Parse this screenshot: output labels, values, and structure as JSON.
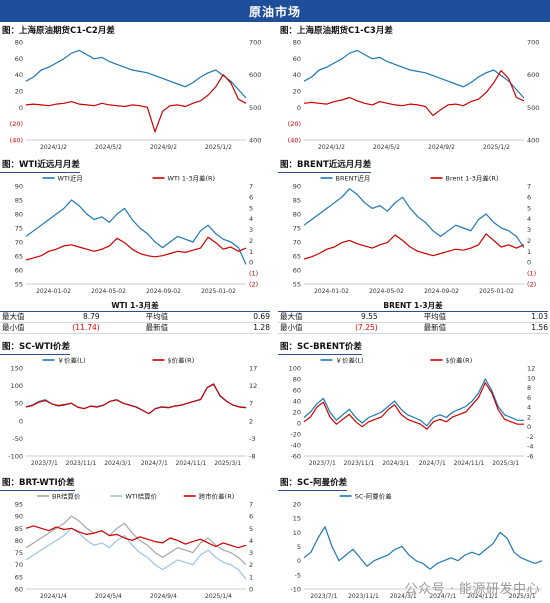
{
  "header": {
    "title": "原油市场"
  },
  "stats_wti": {
    "title": "WTI 1-3月差",
    "max_label": "最大值",
    "max_value": "8.79",
    "avg_label": "平均值",
    "avg_value": "0.69",
    "min_label": "最小值",
    "min_value": "(11.74)",
    "latest_label": "最新值",
    "latest_value": "1.28"
  },
  "stats_brent": {
    "title": "BRENT 1-3月差",
    "max_label": "最大值",
    "max_value": "9.55",
    "avg_label": "平均值",
    "avg_value": "1.03",
    "min_label": "最小值",
    "min_value": "(7.25)",
    "latest_label": "最新值",
    "latest_value": "1.56"
  },
  "watermark": "公众号 · 能源研发中心",
  "chart_data": [
    {
      "id": "c1",
      "type": "line",
      "title": "图：上海原油期货C1-C2月差",
      "x_ticks": [
        "2024/1/2",
        "2024/5/2",
        "2024/9/2",
        "2025/1/2"
      ],
      "left_ticks": [
        "80",
        "60",
        "40",
        "20",
        "0",
        "(20)",
        "(40)"
      ],
      "ylim": [
        -40,
        80
      ],
      "right_ticks": [
        "700",
        "600",
        "500",
        "400"
      ],
      "y2lim": [
        350,
        700
      ],
      "series": [
        {
          "axis": "right",
          "color": "#1f77b4",
          "values": [
            560,
            575,
            600,
            610,
            625,
            640,
            660,
            670,
            655,
            640,
            645,
            630,
            620,
            610,
            600,
            595,
            590,
            580,
            570,
            560,
            550,
            540,
            555,
            575,
            590,
            600,
            580,
            560,
            530,
            500
          ]
        },
        {
          "axis": "left",
          "color": "#cc0000",
          "values": [
            3,
            4,
            3,
            2,
            4,
            5,
            7,
            4,
            3,
            2,
            5,
            3,
            2,
            1,
            3,
            2,
            0,
            -30,
            -5,
            2,
            3,
            1,
            5,
            8,
            15,
            25,
            40,
            30,
            10,
            5
          ]
        }
      ]
    },
    {
      "id": "c2",
      "type": "line",
      "title": "图：上海原油期货C1-C3月差",
      "x_ticks": [
        "2024/1/2",
        "2024/5/2",
        "2024/9/2",
        "2025/1/2"
      ],
      "left_ticks": [
        "80",
        "60",
        "40",
        "20",
        "0",
        "(20)",
        "(40)"
      ],
      "ylim": [
        -40,
        80
      ],
      "right_ticks": [
        "700",
        "600",
        "500",
        "400"
      ],
      "y2lim": [
        350,
        700
      ],
      "series": [
        {
          "axis": "right",
          "color": "#1f77b4",
          "values": [
            560,
            575,
            600,
            610,
            625,
            640,
            660,
            670,
            655,
            640,
            645,
            630,
            620,
            610,
            600,
            595,
            590,
            580,
            570,
            560,
            550,
            540,
            555,
            575,
            590,
            600,
            580,
            560,
            530,
            500
          ]
        },
        {
          "axis": "left",
          "color": "#cc0000",
          "values": [
            5,
            6,
            5,
            4,
            7,
            9,
            12,
            8,
            5,
            3,
            7,
            5,
            3,
            2,
            4,
            3,
            1,
            -10,
            -3,
            3,
            4,
            2,
            7,
            10,
            18,
            30,
            45,
            35,
            12,
            8
          ]
        }
      ]
    },
    {
      "id": "c3",
      "type": "line",
      "title": "图：WTI近远月月差",
      "legend": [
        "WTI近月",
        "WTI 1-3月差(R)"
      ],
      "x_ticks": [
        "2024-01-02",
        "2024-05-02",
        "2024-09-02",
        "2025-01-02"
      ],
      "left_ticks": [
        "90",
        "85",
        "80",
        "75",
        "70",
        "65",
        "60",
        "55"
      ],
      "ylim": [
        55,
        90
      ],
      "right_ticks": [
        "7",
        "6",
        "5",
        "4",
        "3",
        "2",
        "1",
        "0",
        "(1)",
        "(2)"
      ],
      "y2lim": [
        -2,
        7
      ],
      "series": [
        {
          "name": "WTI近月",
          "axis": "left",
          "color": "#1f77b4",
          "values": [
            72,
            74,
            76,
            78,
            80,
            82,
            85,
            83,
            80,
            78,
            79,
            77,
            80,
            82,
            78,
            75,
            73,
            70,
            68,
            70,
            72,
            71,
            70,
            74,
            76,
            73,
            71,
            70,
            68,
            62
          ]
        },
        {
          "name": "WTI 1-3月差(R)",
          "axis": "right",
          "color": "#cc0000",
          "values": [
            0.2,
            0.4,
            0.6,
            1.0,
            1.2,
            1.5,
            1.6,
            1.4,
            1.2,
            1.0,
            1.2,
            1.5,
            2.2,
            1.8,
            1.2,
            0.8,
            0.6,
            0.5,
            0.6,
            0.8,
            1.0,
            0.9,
            1.1,
            1.3,
            2.3,
            1.8,
            1.2,
            1.4,
            1.0,
            1.3
          ]
        }
      ]
    },
    {
      "id": "c4",
      "type": "line",
      "title": "图：BRENT近远月月差",
      "legend": [
        "BRENT近月",
        "Brent 1-3月差(R)"
      ],
      "x_ticks": [
        "2024-01-02",
        "2024-05-02",
        "2024-09-02",
        "2025-01-02"
      ],
      "left_ticks": [
        "90",
        "85",
        "80",
        "75",
        "70",
        "65",
        "60",
        "55"
      ],
      "ylim": [
        55,
        90
      ],
      "right_ticks": [
        "7",
        "6",
        "5",
        "4",
        "3",
        "2",
        "1",
        "0",
        "(1)",
        "(2)"
      ],
      "y2lim": [
        -2,
        7
      ],
      "series": [
        {
          "name": "BRENT近月",
          "axis": "left",
          "color": "#1f77b4",
          "values": [
            76,
            78,
            80,
            82,
            84,
            86,
            89,
            87,
            84,
            82,
            83,
            81,
            84,
            86,
            82,
            79,
            77,
            74,
            72,
            74,
            76,
            75,
            74,
            78,
            80,
            77,
            75,
            74,
            72,
            68
          ]
        },
        {
          "name": "Brent 1-3月差(R)",
          "axis": "right",
          "color": "#cc0000",
          "values": [
            0.3,
            0.5,
            0.8,
            1.2,
            1.4,
            1.8,
            2.0,
            1.7,
            1.5,
            1.3,
            1.6,
            1.8,
            2.5,
            2.0,
            1.4,
            1.0,
            0.8,
            0.6,
            0.8,
            1.0,
            1.2,
            1.1,
            1.3,
            1.6,
            2.6,
            2.0,
            1.4,
            1.6,
            1.3,
            1.6
          ]
        }
      ]
    },
    {
      "id": "c5",
      "type": "line",
      "title": "图：SC-WTI价差",
      "legend": [
        "￥价差(L)",
        "$价差(R)"
      ],
      "x_ticks": [
        "2023/7/1",
        "2023/11/1",
        "2024/3/1",
        "2024/7/1",
        "2024/11/1",
        "2025/3/1"
      ],
      "left_ticks": [
        "150",
        "100",
        "50",
        "0",
        "-50",
        "-100"
      ],
      "ylim": [
        -100,
        150
      ],
      "right_ticks": [
        "17",
        "12",
        "7",
        "2",
        "-3",
        "-8"
      ],
      "y2lim": [
        -10,
        17
      ],
      "series": [
        {
          "name": "￥价差(L)",
          "axis": "left",
          "color": "#1f77b4",
          "values": [
            40,
            45,
            55,
            60,
            48,
            42,
            45,
            50,
            38,
            35,
            42,
            40,
            45,
            55,
            60,
            50,
            45,
            40,
            30,
            20,
            35,
            40,
            38,
            42,
            45,
            50,
            55,
            60,
            95,
            105,
            70,
            55,
            45,
            40,
            38
          ]
        },
        {
          "name": "$价差(R)",
          "axis": "right",
          "color": "#cc0000",
          "values": [
            5,
            5.5,
            6.5,
            7,
            6,
            5.5,
            5.8,
            6.2,
            5,
            4.5,
            5.3,
            5,
            5.6,
            6.8,
            7.2,
            6.2,
            5.6,
            5,
            4,
            3,
            4.5,
            5,
            4.8,
            5.3,
            5.6,
            6.2,
            6.8,
            7.4,
            11,
            12,
            8.5,
            6.8,
            5.6,
            5,
            4.8
          ]
        }
      ]
    },
    {
      "id": "c6",
      "type": "line",
      "title": "图：SC-BRENT价差",
      "legend": [
        "￥价差(L)",
        "$价差(R)"
      ],
      "x_ticks": [
        "2023/7/1",
        "2023/11/1",
        "2024/3/1",
        "2024/7/1",
        "2024/11/1",
        "2025/3/1"
      ],
      "left_ticks": [
        "100",
        "80",
        "60",
        "40",
        "20",
        "0",
        "-20",
        "-40",
        "-60"
      ],
      "ylim": [
        -60,
        100
      ],
      "right_ticks": [
        "12",
        "10",
        "8",
        "6",
        "4",
        "2",
        "0",
        "-2",
        "-4",
        "-6"
      ],
      "y2lim": [
        -6,
        12
      ],
      "series": [
        {
          "name": "￥价差(L)",
          "axis": "left",
          "color": "#1f77b4",
          "values": [
            10,
            20,
            35,
            45,
            20,
            5,
            15,
            25,
            10,
            0,
            10,
            15,
            20,
            30,
            40,
            25,
            15,
            10,
            5,
            -5,
            10,
            15,
            10,
            20,
            25,
            30,
            40,
            55,
            80,
            60,
            30,
            15,
            10,
            5,
            5
          ]
        },
        {
          "name": "$价差(R)",
          "axis": "right",
          "color": "#cc0000",
          "values": [
            1,
            2,
            4,
            5,
            2,
            0.5,
            1.5,
            2.5,
            1,
            0,
            1,
            1.5,
            2,
            3.5,
            4.5,
            2.5,
            1.5,
            1,
            0.5,
            -0.5,
            1,
            1.5,
            1,
            2,
            2.5,
            3,
            4.5,
            6,
            9,
            7,
            3.5,
            1.5,
            1,
            0.5,
            0.5
          ]
        }
      ]
    },
    {
      "id": "c7",
      "type": "line",
      "title": "图：BRT-WTI价差",
      "legend": [
        "BR结算价",
        "WTI结算价",
        "跨市价差(R)"
      ],
      "x_ticks": [
        "2024/1/4",
        "2024/5/4",
        "2024/9/4",
        "2025/1/4"
      ],
      "left_ticks": [
        "95",
        "90",
        "85",
        "80",
        "75",
        "70",
        "65",
        "60"
      ],
      "ylim": [
        60,
        95
      ],
      "right_ticks": [
        "7",
        "6",
        "5",
        "4",
        "3",
        "2",
        "1",
        "0"
      ],
      "y2lim": [
        0,
        7
      ],
      "series": [
        {
          "name": "BR结算价",
          "axis": "left",
          "color": "#a6a6a6",
          "values": [
            77,
            79,
            81,
            83,
            85,
            87,
            90,
            88,
            85,
            83,
            84,
            82,
            85,
            87,
            83,
            80,
            78,
            75,
            73,
            75,
            77,
            76,
            75,
            79,
            81,
            78,
            76,
            75,
            73,
            70
          ]
        },
        {
          "name": "WTI结算价",
          "axis": "left",
          "color": "#9dc3e6",
          "values": [
            72,
            74,
            76,
            78,
            80,
            82,
            85,
            83,
            80,
            78,
            79,
            77,
            80,
            82,
            78,
            75,
            73,
            70,
            68,
            70,
            72,
            71,
            70,
            74,
            76,
            73,
            71,
            70,
            68,
            64
          ]
        },
        {
          "name": "跨市价差(R)",
          "axis": "right",
          "color": "#cc0000",
          "values": [
            5,
            5.2,
            5,
            4.8,
            5.1,
            4.9,
            5,
            4.7,
            4.5,
            4.6,
            4.8,
            4.4,
            4.5,
            4.2,
            4.0,
            4.3,
            4.1,
            3.9,
            3.8,
            4.2,
            4.0,
            3.7,
            3.9,
            4.1,
            3.8,
            3.5,
            3.8,
            3.6,
            3.4,
            3.6
          ]
        }
      ]
    },
    {
      "id": "c8",
      "type": "line",
      "title": "图：SC-阿曼价差",
      "legend": [
        "SC-阿曼价差"
      ],
      "x_ticks": [
        "2023/7/1",
        "2023/11/1",
        "2024/3/1",
        "2024/7/1",
        "2024/11/1",
        "2025/3/1"
      ],
      "left_ticks": [
        "20",
        "15",
        "10",
        "5",
        "0",
        "-5",
        "-10"
      ],
      "ylim": [
        -10,
        20
      ],
      "series": [
        {
          "name": "SC-阿曼价差",
          "axis": "left",
          "color": "#1f77b4",
          "values": [
            1,
            3,
            8,
            12,
            5,
            0,
            2,
            4,
            1,
            -2,
            0,
            1,
            2,
            4,
            5,
            2,
            0,
            -1,
            -3,
            -1,
            0,
            1,
            0,
            2,
            3,
            2,
            4,
            6,
            10,
            8,
            3,
            1,
            0,
            -1,
            0
          ]
        }
      ]
    }
  ]
}
